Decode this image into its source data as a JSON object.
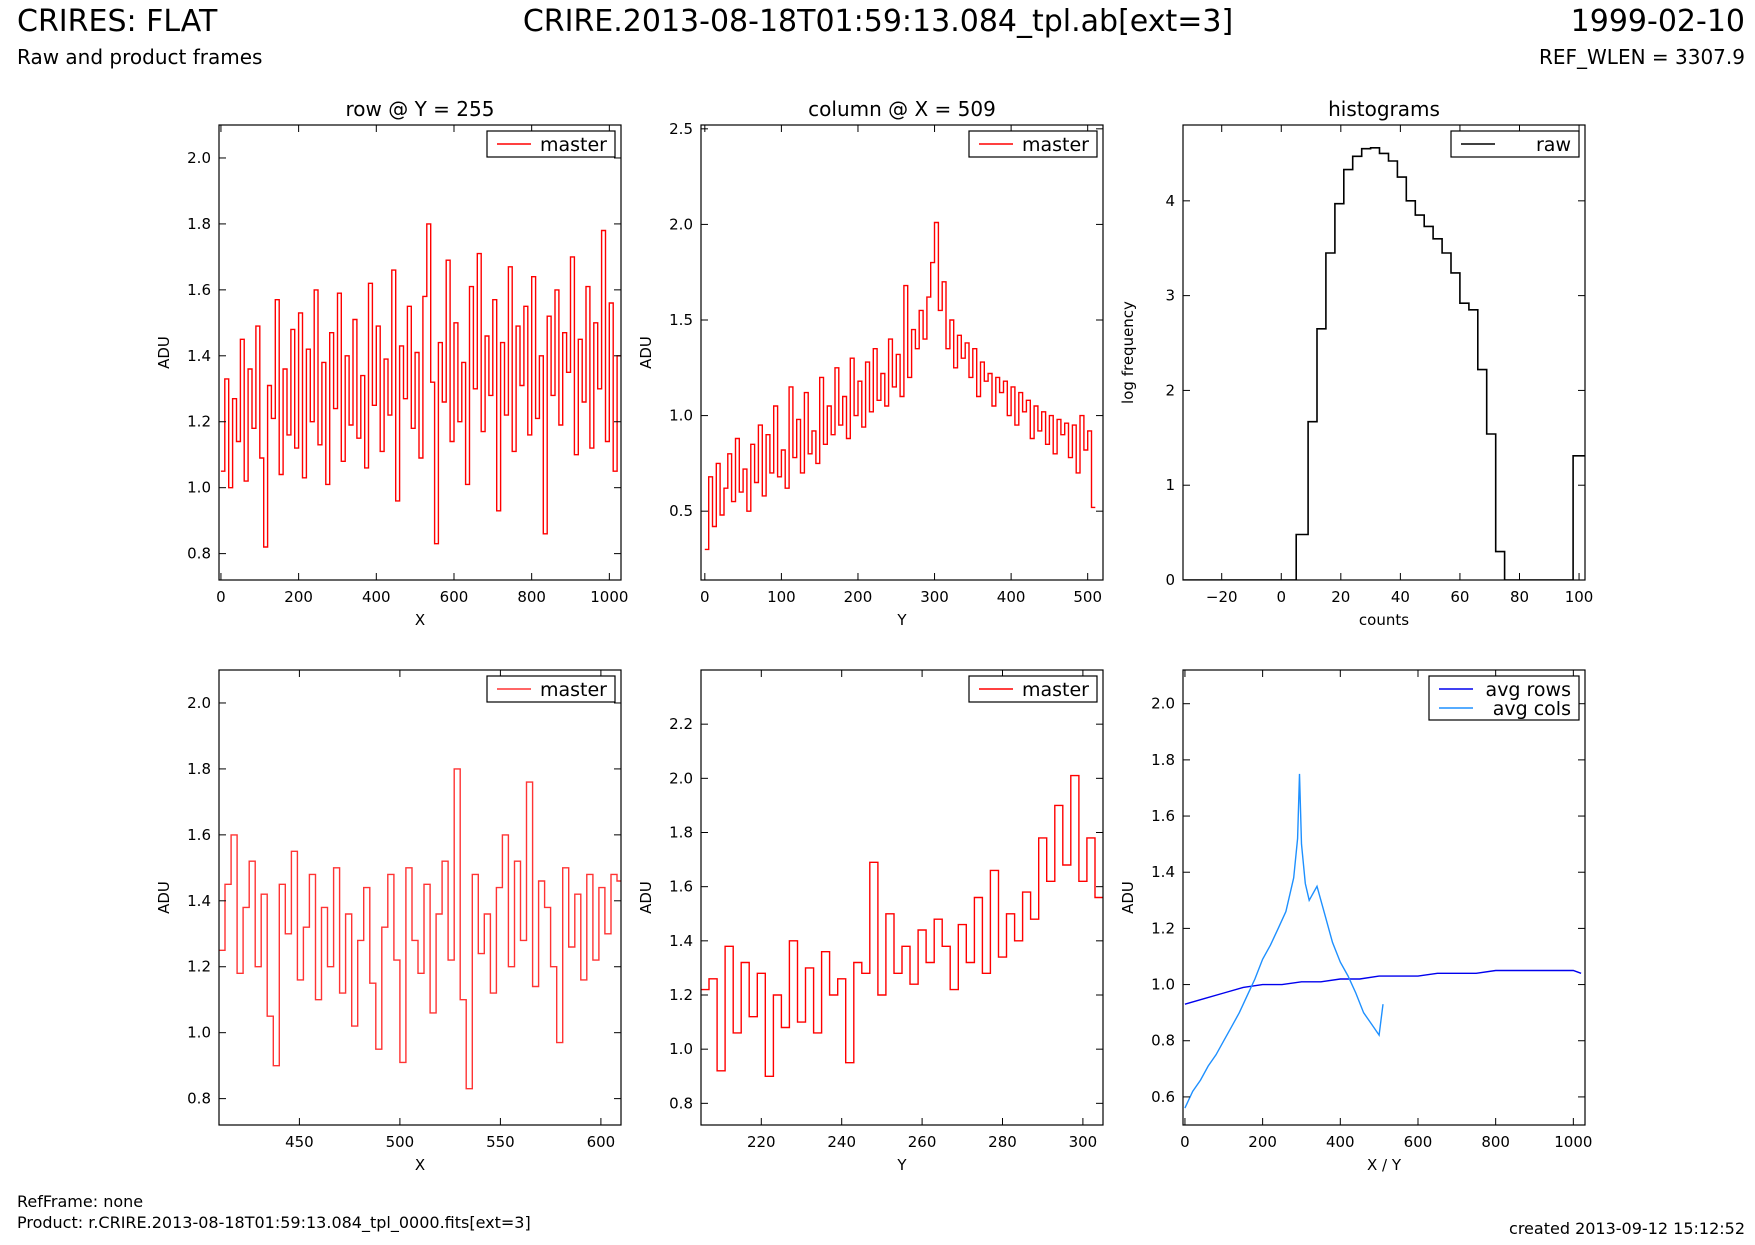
{
  "header": {
    "title": "CRIRES: FLAT",
    "subtitle": "Raw and product frames",
    "center": "CRIRE.2013-08-18T01:59:13.084_tpl.ab[ext=3]",
    "date": "1999-02-10",
    "ref_wlen": "REF_WLEN = 3307.9"
  },
  "footer": {
    "ref_frame": "RefFrame: none",
    "product": "Product: r.CRIRE.2013-08-18T01:59:13.084_tpl_0000.fits[ext=3]",
    "created": "created 2013-09-12 15:12:52"
  },
  "colors": {
    "master": "#ff0000",
    "raw": "#000000",
    "avg_rows": "#0000ee",
    "avg_cols": "#1e90ff"
  },
  "chart_data": [
    {
      "id": "row-top",
      "type": "line",
      "title": "row @ Y = 255",
      "xlabel": "X",
      "ylabel": "ADU",
      "xlim": [
        -5,
        1030
      ],
      "ylim": [
        0.72,
        2.1
      ],
      "xticks": [
        0,
        200,
        400,
        600,
        800,
        1000
      ],
      "yticks": [
        0.8,
        1.0,
        1.2,
        1.4,
        1.6,
        1.8,
        2.0
      ],
      "legend": "top-right",
      "series": [
        {
          "name": "master",
          "color": "#ff0000",
          "step": true,
          "x": [
            0,
            10,
            20,
            30,
            40,
            50,
            60,
            70,
            80,
            90,
            100,
            110,
            120,
            130,
            140,
            150,
            160,
            170,
            180,
            190,
            200,
            210,
            220,
            230,
            240,
            250,
            260,
            270,
            280,
            290,
            300,
            310,
            320,
            330,
            340,
            350,
            360,
            370,
            380,
            390,
            400,
            410,
            420,
            430,
            440,
            450,
            460,
            470,
            480,
            490,
            500,
            510,
            520,
            530,
            540,
            550,
            560,
            570,
            580,
            590,
            600,
            610,
            620,
            630,
            640,
            650,
            660,
            670,
            680,
            690,
            700,
            710,
            720,
            730,
            740,
            750,
            760,
            770,
            780,
            790,
            800,
            810,
            820,
            830,
            840,
            850,
            860,
            870,
            880,
            890,
            900,
            910,
            920,
            930,
            940,
            950,
            960,
            970,
            980,
            990,
            1000,
            1010,
            1020
          ],
          "y": [
            1.05,
            1.33,
            1.0,
            1.27,
            1.14,
            1.45,
            1.02,
            1.36,
            1.18,
            1.49,
            1.09,
            0.82,
            1.31,
            1.21,
            1.57,
            1.04,
            1.36,
            1.16,
            1.48,
            1.12,
            1.53,
            1.03,
            1.42,
            1.2,
            1.6,
            1.13,
            1.38,
            1.01,
            1.47,
            1.24,
            1.59,
            1.08,
            1.4,
            1.19,
            1.51,
            1.15,
            1.34,
            1.06,
            1.62,
            1.25,
            1.49,
            1.11,
            1.39,
            1.22,
            1.66,
            0.96,
            1.43,
            1.27,
            1.55,
            1.18,
            1.41,
            1.09,
            1.58,
            1.8,
            1.32,
            0.83,
            1.44,
            1.26,
            1.69,
            1.14,
            1.5,
            1.2,
            1.38,
            1.01,
            1.61,
            1.3,
            1.71,
            1.17,
            1.46,
            1.28,
            1.57,
            0.93,
            1.44,
            1.22,
            1.67,
            1.11,
            1.49,
            1.31,
            1.55,
            1.16,
            1.64,
            1.21,
            1.4,
            0.86,
            1.52,
            1.28,
            1.6,
            1.19,
            1.47,
            1.35,
            1.7,
            1.1,
            1.45,
            1.26,
            1.61,
            1.12,
            1.5,
            1.3,
            1.78,
            1.14,
            1.56,
            1.05,
            1.4
          ]
        }
      ]
    },
    {
      "id": "col-top",
      "type": "line",
      "title": "column @ X = 509",
      "xlabel": "Y",
      "ylabel": "ADU",
      "xlim": [
        -5,
        520
      ],
      "ylim": [
        0.14,
        2.52
      ],
      "xticks": [
        0,
        100,
        200,
        300,
        400,
        500
      ],
      "yticks": [
        0.5,
        1.0,
        1.5,
        2.0,
        2.5
      ],
      "legend": "top-right",
      "series": [
        {
          "name": "master",
          "color": "#ff0000",
          "step": true,
          "x": [
            0,
            5,
            10,
            15,
            20,
            25,
            30,
            35,
            40,
            45,
            50,
            55,
            60,
            65,
            70,
            75,
            80,
            85,
            90,
            95,
            100,
            105,
            110,
            115,
            120,
            125,
            130,
            135,
            140,
            145,
            150,
            155,
            160,
            165,
            170,
            175,
            180,
            185,
            190,
            195,
            200,
            205,
            210,
            215,
            220,
            225,
            230,
            235,
            240,
            245,
            250,
            255,
            260,
            265,
            270,
            275,
            280,
            285,
            290,
            295,
            300,
            305,
            310,
            315,
            320,
            325,
            330,
            335,
            340,
            345,
            350,
            355,
            360,
            365,
            370,
            375,
            380,
            385,
            390,
            395,
            400,
            405,
            410,
            415,
            420,
            425,
            430,
            435,
            440,
            445,
            450,
            455,
            460,
            465,
            470,
            475,
            480,
            485,
            490,
            495,
            500,
            505
          ],
          "y": [
            0.3,
            0.68,
            0.42,
            0.75,
            0.48,
            0.62,
            0.8,
            0.55,
            0.88,
            0.6,
            0.72,
            0.5,
            0.85,
            0.65,
            0.95,
            0.58,
            0.9,
            0.7,
            1.05,
            0.68,
            0.82,
            0.62,
            1.15,
            0.78,
            0.98,
            0.7,
            1.12,
            0.8,
            0.92,
            0.75,
            1.2,
            0.85,
            1.05,
            0.9,
            1.25,
            0.95,
            1.1,
            0.88,
            1.3,
            1.0,
            1.18,
            0.94,
            1.28,
            1.02,
            1.35,
            1.08,
            1.22,
            1.05,
            1.4,
            1.15,
            1.32,
            1.1,
            1.68,
            1.2,
            1.45,
            1.35,
            1.55,
            1.4,
            1.62,
            1.8,
            2.01,
            1.55,
            1.7,
            1.35,
            1.5,
            1.25,
            1.42,
            1.3,
            1.38,
            1.2,
            1.35,
            1.1,
            1.28,
            1.18,
            1.22,
            1.05,
            1.2,
            1.12,
            1.18,
            1.0,
            1.15,
            0.95,
            1.12,
            1.02,
            1.08,
            0.88,
            1.05,
            0.92,
            1.02,
            0.85,
            1.0,
            0.8,
            0.98,
            0.9,
            0.96,
            0.78,
            0.95,
            0.7,
            1.0,
            0.82,
            0.92,
            0.52
          ]
        }
      ]
    },
    {
      "id": "hist",
      "type": "line",
      "title": "histograms",
      "xlabel": "counts",
      "ylabel": "log frequency",
      "xlim": [
        -33,
        102
      ],
      "ylim": [
        0,
        4.8
      ],
      "xticks": [
        -20,
        0,
        20,
        40,
        60,
        80,
        100
      ],
      "yticks": [
        0,
        1,
        2,
        3,
        4
      ],
      "legend": "top-right",
      "series": [
        {
          "name": "raw",
          "color": "#000000",
          "histogram": true,
          "edges": [
            -40,
            5,
            9,
            12,
            15,
            18,
            21,
            24,
            27,
            30,
            33,
            36,
            39,
            42,
            45,
            48,
            51,
            54,
            57,
            60,
            63,
            66,
            69,
            72,
            75,
            98,
            102
          ],
          "counts": [
            0,
            0.48,
            1.67,
            2.65,
            3.45,
            3.97,
            4.33,
            4.47,
            4.55,
            4.56,
            4.5,
            4.42,
            4.25,
            4.0,
            3.85,
            3.73,
            3.6,
            3.45,
            3.24,
            2.92,
            2.85,
            2.22,
            1.54,
            0.3,
            0,
            1.31
          ]
        }
      ]
    },
    {
      "id": "row-zoom",
      "type": "line",
      "title": "",
      "xlabel": "X",
      "ylabel": "ADU",
      "xlim": [
        410,
        610
      ],
      "ylim": [
        0.72,
        2.1
      ],
      "xticks": [
        450,
        500,
        550,
        600
      ],
      "yticks": [
        0.8,
        1.0,
        1.2,
        1.4,
        1.6,
        1.8,
        2.0
      ],
      "legend": "top-right",
      "series": [
        {
          "name": "master",
          "color": "#ff3333",
          "step": true,
          "x": [
            410,
            413,
            416,
            419,
            422,
            425,
            428,
            431,
            434,
            437,
            440,
            443,
            446,
            449,
            452,
            455,
            458,
            461,
            464,
            467,
            470,
            473,
            476,
            479,
            482,
            485,
            488,
            491,
            494,
            497,
            500,
            503,
            506,
            509,
            512,
            515,
            518,
            521,
            524,
            527,
            530,
            533,
            536,
            539,
            542,
            545,
            548,
            551,
            554,
            557,
            560,
            563,
            566,
            569,
            572,
            575,
            578,
            581,
            584,
            587,
            590,
            593,
            596,
            599,
            602,
            605,
            608
          ],
          "y": [
            1.25,
            1.45,
            1.6,
            1.18,
            1.38,
            1.52,
            1.2,
            1.42,
            1.05,
            0.9,
            1.45,
            1.3,
            1.55,
            1.16,
            1.32,
            1.48,
            1.1,
            1.38,
            1.2,
            1.5,
            1.12,
            1.36,
            1.02,
            1.28,
            1.44,
            1.15,
            0.95,
            1.32,
            1.48,
            1.22,
            0.91,
            1.5,
            1.28,
            1.18,
            1.45,
            1.06,
            1.36,
            1.52,
            1.22,
            1.8,
            1.1,
            0.83,
            1.48,
            1.24,
            1.36,
            1.12,
            1.44,
            1.6,
            1.2,
            1.52,
            1.28,
            1.76,
            1.14,
            1.46,
            1.38,
            1.2,
            0.97,
            1.5,
            1.26,
            1.42,
            1.16,
            1.48,
            1.22,
            1.44,
            1.3,
            1.48,
            1.46
          ]
        }
      ]
    },
    {
      "id": "col-zoom",
      "type": "line",
      "title": "",
      "xlabel": "Y",
      "ylabel": "ADU",
      "xlim": [
        205,
        305
      ],
      "ylim": [
        0.72,
        2.4
      ],
      "xticks": [
        220,
        240,
        260,
        280,
        300
      ],
      "yticks": [
        0.8,
        1.0,
        1.2,
        1.4,
        1.6,
        1.8,
        2.0,
        2.2
      ],
      "legend": "top-right",
      "series": [
        {
          "name": "master",
          "color": "#ff0000",
          "step": true,
          "x": [
            205,
            207,
            209,
            211,
            213,
            215,
            217,
            219,
            221,
            223,
            225,
            227,
            229,
            231,
            233,
            235,
            237,
            239,
            241,
            243,
            245,
            247,
            249,
            251,
            253,
            255,
            257,
            259,
            261,
            263,
            265,
            267,
            269,
            271,
            273,
            275,
            277,
            279,
            281,
            283,
            285,
            287,
            289,
            291,
            293,
            295,
            297,
            299,
            301,
            303
          ],
          "y": [
            1.22,
            1.26,
            0.92,
            1.38,
            1.06,
            1.32,
            1.12,
            1.28,
            0.9,
            1.2,
            1.08,
            1.4,
            1.1,
            1.3,
            1.06,
            1.36,
            1.2,
            1.26,
            0.95,
            1.32,
            1.28,
            1.69,
            1.2,
            1.5,
            1.28,
            1.38,
            1.24,
            1.44,
            1.32,
            1.48,
            1.38,
            1.22,
            1.46,
            1.32,
            1.56,
            1.28,
            1.66,
            1.34,
            1.5,
            1.4,
            1.58,
            1.48,
            1.78,
            1.62,
            1.9,
            1.68,
            2.01,
            1.62,
            1.78,
            1.56
          ]
        }
      ]
    },
    {
      "id": "avg",
      "type": "line",
      "title": "",
      "xlabel": "X / Y",
      "ylabel": "ADU",
      "xlim": [
        -5,
        1030
      ],
      "ylim": [
        0.5,
        2.12
      ],
      "xticks": [
        0,
        200,
        400,
        600,
        800,
        1000
      ],
      "yticks": [
        0.6,
        0.8,
        1.0,
        1.2,
        1.4,
        1.6,
        1.8,
        2.0
      ],
      "legend": "top-right",
      "series": [
        {
          "name": "avg rows",
          "color": "#0000ee",
          "x": [
            0,
            50,
            100,
            150,
            200,
            250,
            300,
            350,
            400,
            450,
            500,
            550,
            600,
            650,
            700,
            750,
            800,
            850,
            900,
            950,
            1000,
            1020
          ],
          "y": [
            0.93,
            0.95,
            0.97,
            0.99,
            1.0,
            1.0,
            1.01,
            1.01,
            1.02,
            1.02,
            1.03,
            1.03,
            1.03,
            1.04,
            1.04,
            1.04,
            1.05,
            1.05,
            1.05,
            1.05,
            1.05,
            1.04
          ]
        },
        {
          "name": "avg cols",
          "color": "#1e90ff",
          "x": [
            0,
            20,
            40,
            60,
            80,
            100,
            120,
            140,
            160,
            180,
            200,
            220,
            240,
            260,
            280,
            290,
            295,
            300,
            310,
            320,
            340,
            360,
            380,
            400,
            420,
            440,
            460,
            480,
            500,
            510
          ],
          "y": [
            0.56,
            0.62,
            0.66,
            0.71,
            0.75,
            0.8,
            0.85,
            0.9,
            0.96,
            1.02,
            1.09,
            1.14,
            1.2,
            1.26,
            1.38,
            1.52,
            1.75,
            1.5,
            1.36,
            1.3,
            1.35,
            1.25,
            1.15,
            1.08,
            1.03,
            0.97,
            0.9,
            0.86,
            0.82,
            0.93
          ]
        }
      ]
    }
  ]
}
